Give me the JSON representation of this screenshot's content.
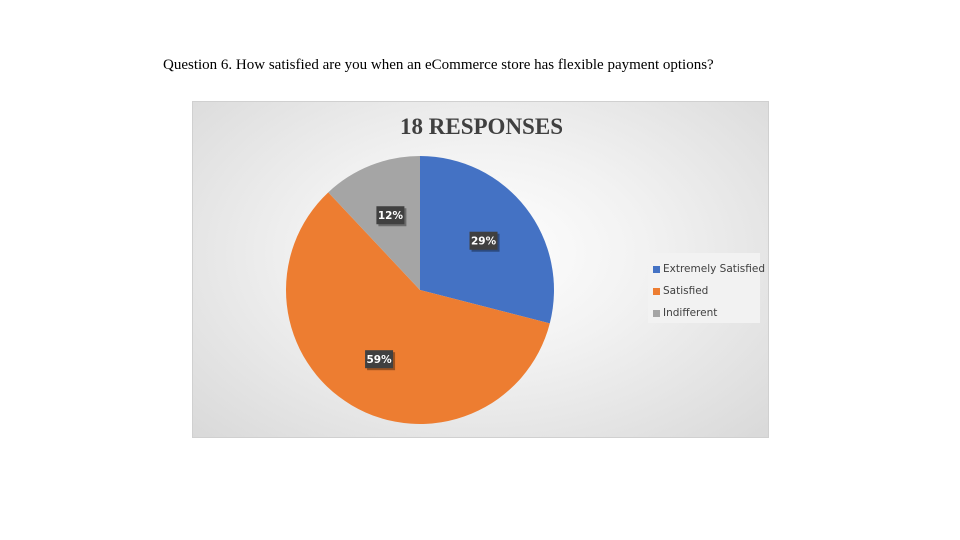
{
  "question": "Question 6. How satisfied are you when an eCommerce store has flexible payment options?",
  "chart_data": {
    "type": "pie",
    "title": "18 RESPONSES",
    "categories": [
      "Extremely Satisfied",
      "Satisfied",
      "Indifferent"
    ],
    "values": [
      29,
      59,
      12
    ],
    "data_labels": [
      "29%",
      "59%",
      "12%"
    ],
    "colors": [
      "#4472c4",
      "#ed7d31",
      "#a5a5a5"
    ],
    "legend_placement": "right"
  }
}
